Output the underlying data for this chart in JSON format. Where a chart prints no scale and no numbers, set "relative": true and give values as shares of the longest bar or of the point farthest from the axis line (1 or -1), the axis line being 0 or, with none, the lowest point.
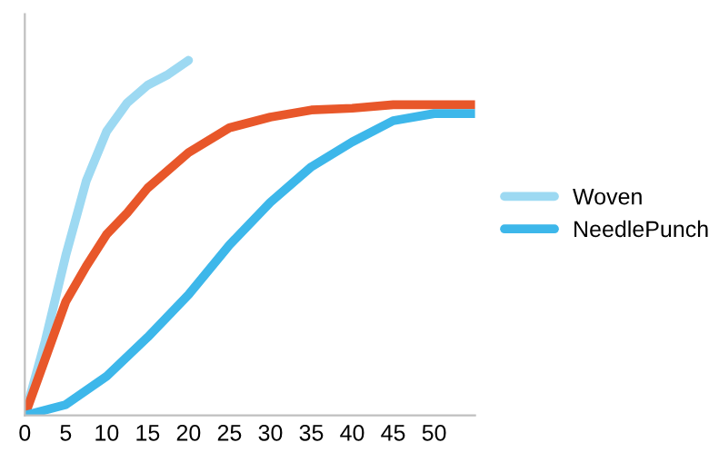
{
  "chart_data": {
    "type": "line",
    "relative": true,
    "xlim": [
      0,
      55
    ],
    "xticks": [
      0,
      5,
      10,
      15,
      20,
      25,
      30,
      35,
      40,
      45,
      50
    ],
    "grid": false,
    "legend": "right",
    "marker": "none",
    "line_style": "solid",
    "series": [
      {
        "name": "Woven",
        "color": "#9dd9f2",
        "x": [
          0,
          2.5,
          5,
          7.5,
          10,
          12.5,
          15,
          17.5,
          20
        ],
        "values": [
          0,
          0.21,
          0.45,
          0.66,
          0.8,
          0.88,
          0.93,
          0.96,
          1
        ]
      },
      {
        "color": "#e8572a",
        "x": [
          0,
          2.5,
          5,
          7.5,
          10,
          12.5,
          15,
          20,
          25,
          30,
          35,
          40,
          45,
          50,
          55
        ],
        "values": [
          0,
          0.16,
          0.32,
          0.42,
          0.51,
          0.57,
          0.64,
          0.74,
          0.81,
          0.84,
          0.86,
          0.865,
          0.875,
          0.875,
          0.875
        ]
      },
      {
        "name": "NeedlePunch",
        "color": "#3db7ea",
        "x": [
          0,
          5,
          10,
          15,
          20,
          25,
          30,
          35,
          40,
          45,
          50,
          55
        ],
        "values": [
          0,
          0.03,
          0.11,
          0.22,
          0.34,
          0.48,
          0.6,
          0.7,
          0.77,
          0.83,
          0.85,
          0.85
        ]
      }
    ]
  }
}
